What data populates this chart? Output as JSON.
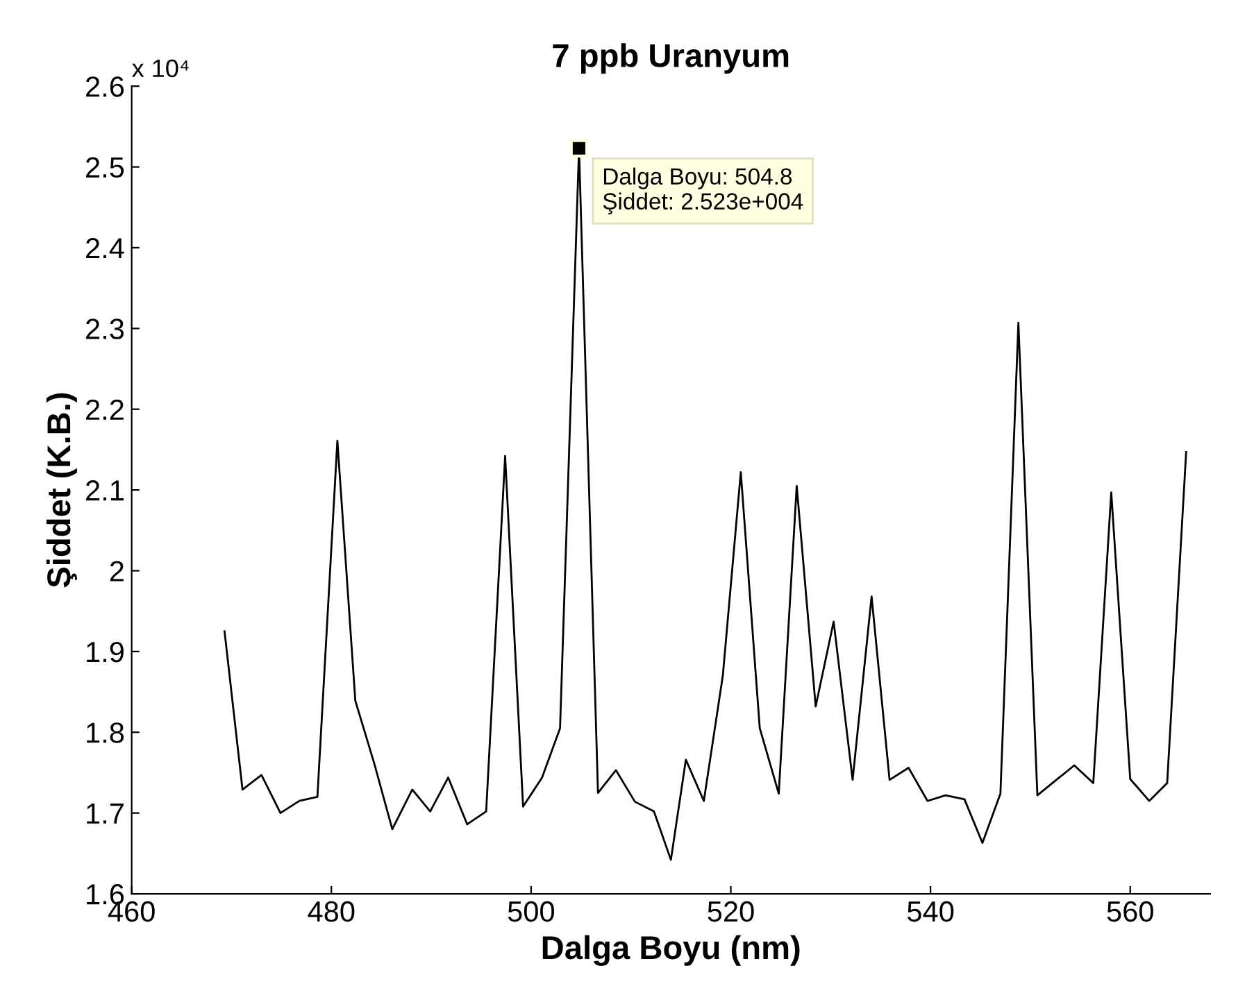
{
  "chart_data": {
    "type": "line",
    "title": "7 ppb Uranyum",
    "xlabel": "Dalga Boyu (nm)",
    "ylabel": "Şiddet (K.B.)",
    "x": [
      469.3,
      471.1,
      473.0,
      474.9,
      476.8,
      478.6,
      480.6,
      482.4,
      484.3,
      486.1,
      488.1,
      489.9,
      491.7,
      493.6,
      495.5,
      497.4,
      499.2,
      501.1,
      502.9,
      504.8,
      506.7,
      508.5,
      510.4,
      512.3,
      514.0,
      515.5,
      517.3,
      519.2,
      521.0,
      522.9,
      524.8,
      526.6,
      528.5,
      530.3,
      532.2,
      534.1,
      535.9,
      537.8,
      539.7,
      541.5,
      543.4,
      545.2,
      547.0,
      548.8,
      550.7,
      552.6,
      554.4,
      556.3,
      558.1,
      560.0,
      561.9,
      563.7,
      565.6
    ],
    "series": [
      {
        "color": "#000000",
        "values": [
          1.925,
          1.729,
          1.747,
          1.7,
          1.715,
          1.72,
          2.161,
          1.839,
          1.761,
          1.68,
          1.729,
          1.702,
          1.744,
          1.686,
          1.702,
          2.142,
          1.708,
          1.744,
          1.805,
          2.523,
          1.725,
          1.753,
          1.714,
          1.702,
          1.642,
          1.766,
          1.715,
          1.87,
          2.122,
          1.805,
          1.724,
          2.105,
          1.832,
          1.937,
          1.741,
          1.968,
          1.741,
          1.756,
          1.715,
          1.722,
          1.717,
          1.663,
          1.724,
          2.307,
          1.722,
          1.741,
          1.759,
          1.737,
          2.097,
          1.742,
          1.715,
          1.737,
          2.147
        ]
      }
    ],
    "xlim": [
      460,
      568
    ],
    "xticks": [
      460,
      480,
      500,
      520,
      540,
      560
    ],
    "ylim": [
      1.6,
      2.6
    ],
    "yticks": [
      1.6,
      1.7,
      1.8,
      1.9,
      2,
      2.1,
      2.2,
      2.3,
      2.4,
      2.5,
      2.6
    ],
    "annotations": [
      "x 10⁴",
      {
        "text": "Dalga Boyu: 504.8\nŞiddet: 2.523e+004",
        "x": 504.8,
        "y": 2.523
      }
    ],
    "grid": false,
    "legend": false,
    "marker": "none",
    "line_style": "solid"
  }
}
